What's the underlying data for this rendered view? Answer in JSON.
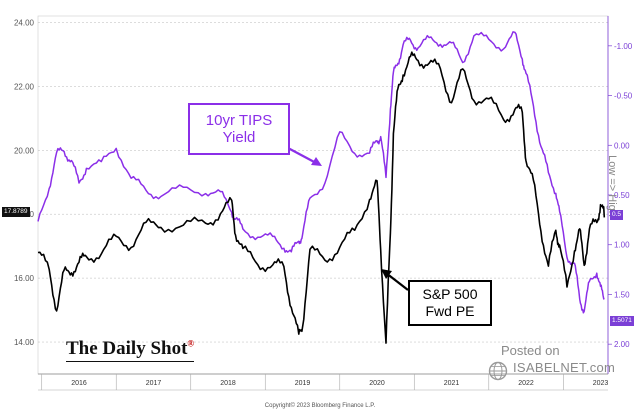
{
  "colors": {
    "sp500": "#000000",
    "tips": "#8b2fe8",
    "grid": "#b8b8b8",
    "brand_accent": "#c00000"
  },
  "chart_data": {
    "type": "line",
    "title": "",
    "left_axis": {
      "ylim": [
        13.0,
        24.2
      ],
      "ticks": [
        "14.00",
        "16.00",
        "18.00",
        "20.00",
        "22.00",
        "24.00"
      ],
      "tick_values": [
        14,
        16,
        18,
        20,
        22,
        24
      ]
    },
    "right_axis": {
      "inverted": true,
      "ylim": [
        2.3,
        -1.3
      ],
      "label": "Low => High",
      "ticks": [
        "-1.00",
        "-0.50",
        "0.00",
        "0.50",
        "1.00",
        "1.50",
        "2.00"
      ],
      "tick_values": [
        -1.0,
        -0.5,
        0.0,
        0.5,
        1.0,
        1.5,
        2.0
      ]
    },
    "x_range": [
      2015.45,
      2023.1
    ],
    "x_ticks": [
      "2016",
      "2017",
      "2018",
      "2019",
      "2020",
      "2021",
      "2022",
      "2023"
    ],
    "x_tick_values": [
      2016,
      2017,
      2018,
      2019,
      2020,
      2021,
      2022,
      2023
    ],
    "series": [
      {
        "name": "S&P 500 Fwd PE",
        "axis": "left",
        "x": [
          2015.45,
          2015.6,
          2015.7,
          2015.8,
          2015.9,
          2016.0,
          2016.1,
          2016.3,
          2016.5,
          2016.7,
          2016.9,
          2017.1,
          2017.4,
          2017.7,
          2017.9,
          2018.05,
          2018.1,
          2018.2,
          2018.4,
          2018.6,
          2018.75,
          2018.85,
          2018.95,
          2019.0,
          2019.1,
          2019.3,
          2019.5,
          2019.7,
          2019.9,
          2020.0,
          2020.05,
          2020.12,
          2020.18,
          2020.22,
          2020.28,
          2020.35,
          2020.45,
          2020.55,
          2020.7,
          2020.85,
          2021.0,
          2021.15,
          2021.3,
          2021.5,
          2021.7,
          2021.85,
          2021.95,
          2022.0,
          2022.1,
          2022.2,
          2022.3,
          2022.4,
          2022.45,
          2022.55,
          2022.65,
          2022.72,
          2022.78,
          2022.85,
          2022.95,
          2023.0,
          2023.05
        ],
        "values": [
          16.8,
          16.2,
          15.1,
          16.1,
          16.3,
          16.4,
          16.7,
          16.8,
          17.2,
          17.1,
          17.6,
          17.7,
          17.6,
          17.7,
          18.1,
          18.3,
          17.5,
          16.8,
          16.5,
          16.4,
          16.3,
          15.2,
          14.1,
          14.6,
          16.8,
          16.6,
          17.0,
          17.4,
          18.6,
          18.9,
          17.0,
          13.9,
          17.4,
          20.6,
          21.8,
          22.5,
          22.8,
          22.9,
          22.7,
          22.5,
          21.6,
          22.4,
          21.7,
          21.5,
          21.0,
          21.3,
          21.1,
          19.8,
          18.9,
          17.6,
          16.3,
          17.5,
          17.1,
          15.6,
          17.0,
          17.4,
          16.5,
          17.5,
          17.7,
          18.4,
          17.9
        ]
      },
      {
        "name": "10yr TIPS Yield",
        "axis": "right",
        "x": [
          2015.45,
          2015.6,
          2015.7,
          2015.8,
          2015.9,
          2016.0,
          2016.1,
          2016.3,
          2016.5,
          2016.7,
          2016.9,
          2017.1,
          2017.4,
          2017.7,
          2017.9,
          2018.05,
          2018.1,
          2018.2,
          2018.4,
          2018.6,
          2018.75,
          2018.85,
          2018.95,
          2019.0,
          2019.1,
          2019.3,
          2019.5,
          2019.7,
          2019.9,
          2020.0,
          2020.05,
          2020.12,
          2020.18,
          2020.22,
          2020.28,
          2020.35,
          2020.45,
          2020.55,
          2020.7,
          2020.85,
          2021.0,
          2021.15,
          2021.3,
          2021.5,
          2021.7,
          2021.85,
          2021.95,
          2022.0,
          2022.1,
          2022.2,
          2022.3,
          2022.4,
          2022.45,
          2022.55,
          2022.65,
          2022.72,
          2022.78,
          2022.85,
          2022.95,
          2023.0,
          2023.05
        ],
        "values": [
          0.8,
          0.4,
          0.1,
          0.05,
          0.15,
          0.4,
          0.2,
          0.2,
          0.0,
          0.35,
          0.45,
          0.5,
          0.45,
          0.45,
          0.5,
          0.65,
          0.75,
          0.85,
          0.9,
          0.95,
          1.0,
          1.1,
          0.95,
          0.9,
          0.55,
          0.35,
          -0.1,
          0.05,
          0.1,
          -0.05,
          -0.1,
          0.35,
          -0.4,
          -0.7,
          -0.85,
          -1.0,
          -1.05,
          -1.0,
          -1.05,
          -1.05,
          -1.0,
          -0.85,
          -1.1,
          -1.05,
          -1.0,
          -1.1,
          -0.9,
          -0.7,
          -0.4,
          0.0,
          0.3,
          0.45,
          0.7,
          1.1,
          1.2,
          1.55,
          1.65,
          1.4,
          1.25,
          1.45,
          1.55
        ]
      }
    ],
    "annotations": [
      {
        "label_lines": [
          "10yr TIPS",
          "Yield"
        ],
        "color": "#8b2fe8"
      },
      {
        "label_lines": [
          "S&P 500",
          "Fwd PE"
        ],
        "color": "#000000"
      }
    ],
    "last_value_labels": {
      "left": "17.8789",
      "right_upper": "0.5",
      "right_lower": "1.5071"
    }
  },
  "branding": {
    "logo_text": "The Daily Shot",
    "logo_mark": "®",
    "posted_on": "Posted on",
    "site": "ISABELNET.com",
    "copyright": "Copyright© 2023 Bloomberg Finance L.P."
  }
}
